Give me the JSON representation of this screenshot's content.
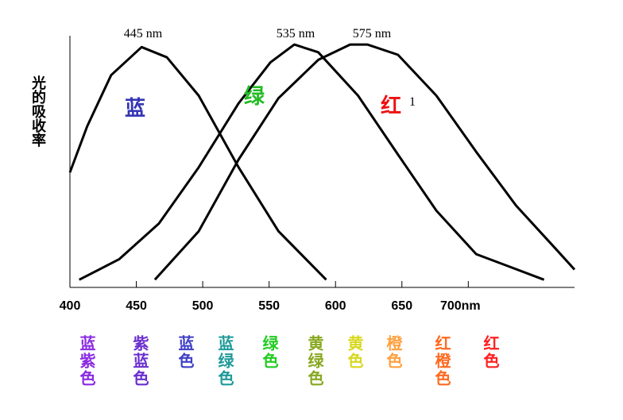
{
  "chart_data": {
    "type": "line",
    "y_label": "光的吸收率",
    "xlim": [
      400,
      780
    ],
    "ylim": [
      0,
      100
    ],
    "xticks": [
      400,
      450,
      500,
      550,
      600,
      650,
      {
        "value": 700,
        "label": "700nm"
      }
    ],
    "annotations": [
      "445 nm",
      "535 nm",
      "575 nm",
      "1"
    ],
    "series": [
      {
        "name": "蓝",
        "color": "#3535b5",
        "x": [
          400,
          413,
          431,
          454,
          473,
          497,
          527,
          557,
          593
        ],
        "values": [
          45,
          63,
          83,
          94,
          90,
          75,
          47,
          22,
          3
        ]
      },
      {
        "name": "绿",
        "color": "#22bb22",
        "x": [
          407,
          437,
          467,
          497,
          527,
          551,
          569,
          587,
          617,
          647,
          676,
          706,
          757
        ],
        "values": [
          3,
          11,
          25,
          47,
          72,
          88,
          95,
          92,
          75,
          52,
          30,
          13,
          3
        ]
      },
      {
        "name": "红",
        "color": "#ee1111",
        "x": [
          464,
          497,
          527,
          557,
          587,
          611,
          624,
          647,
          676,
          706,
          736,
          766,
          780
        ],
        "values": [
          3,
          22,
          50,
          74,
          89,
          95,
          95,
          91,
          75,
          53,
          32,
          15,
          7
        ]
      }
    ],
    "color_names": [
      {
        "label": "蓝紫色",
        "color": "#8a2be2"
      },
      {
        "label": "紫蓝色",
        "color": "#6a2fd0"
      },
      {
        "label": "蓝色",
        "color": "#4040c8"
      },
      {
        "label": "蓝绿色",
        "color": "#209a9a"
      },
      {
        "label": "绿色",
        "color": "#22cc22"
      },
      {
        "label": "黄绿色",
        "color": "#88a820"
      },
      {
        "label": "黄色",
        "color": "#d8d820"
      },
      {
        "label": "橙色",
        "color": "#ffa040"
      },
      {
        "label": "红橙色",
        "color": "#ff6a20"
      },
      {
        "label": "红色",
        "color": "#ff2020"
      }
    ]
  }
}
